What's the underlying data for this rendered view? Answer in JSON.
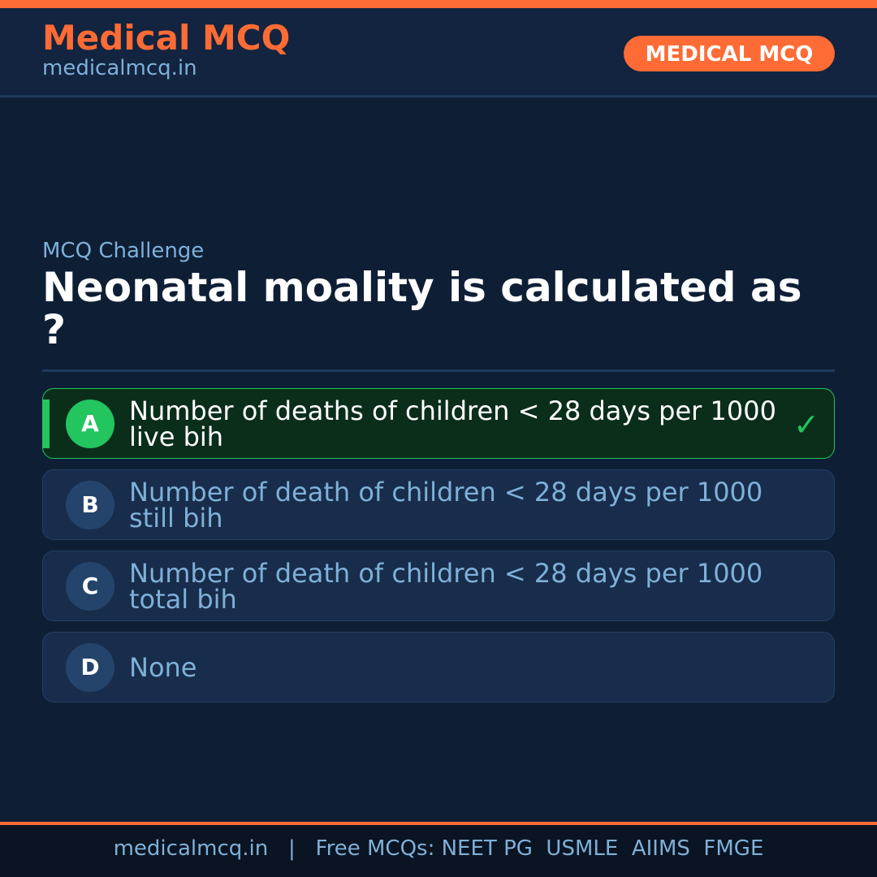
{
  "header": {
    "brand": "Medical MCQ",
    "url": "medicalmcq.in",
    "badge": "MEDICAL MCQ"
  },
  "colors": {
    "accent": "#ff6b35",
    "correct": "#22c55e",
    "background": "#0e1f35"
  },
  "quiz": {
    "kicker": "MCQ Challenge",
    "question": "Neonatal moality is calculated as ?",
    "options": [
      {
        "letter": "A",
        "text": "Number of deaths of children < 28 days per 1000 live bih",
        "correct": true,
        "icon": "checkmark-icon"
      },
      {
        "letter": "B",
        "text": "Number of death of children < 28 days per 1000 still bih"
      },
      {
        "letter": "C",
        "text": "Number of death of children < 28 days per 1000 total bih"
      },
      {
        "letter": "D",
        "text": "None"
      }
    ]
  },
  "footer": {
    "text": "medicalmcq.in   |   Free MCQs: NEET PG  USMLE  AIIMS  FMGE"
  }
}
